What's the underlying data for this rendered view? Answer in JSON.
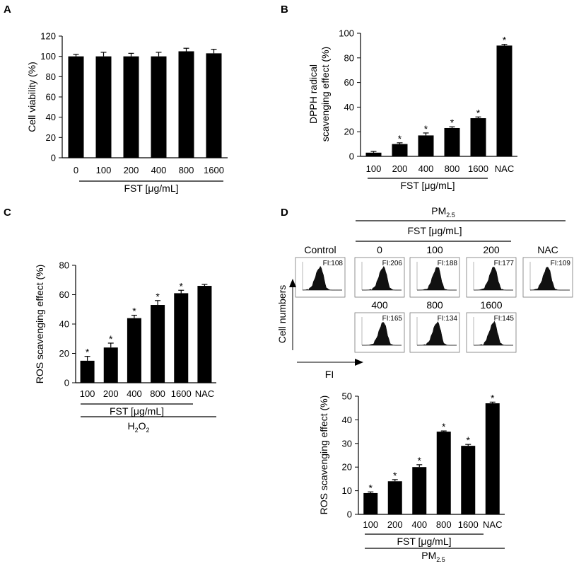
{
  "panels": {
    "A": "A",
    "B": "B",
    "C": "C",
    "D": "D"
  },
  "chart_data": [
    {
      "panel": "A",
      "type": "bar",
      "title": "",
      "ylabel": "Cell viability (%)",
      "xlabel": "",
      "ylim": [
        0,
        120
      ],
      "yticks": [
        0,
        20,
        40,
        60,
        80,
        100,
        120
      ],
      "categories": [
        "0",
        "100",
        "200",
        "400",
        "800",
        "1600"
      ],
      "values": [
        100,
        100,
        100,
        100,
        105,
        103
      ],
      "errors": [
        2,
        4,
        3,
        4,
        3,
        4
      ],
      "significant": [
        false,
        false,
        false,
        false,
        false,
        false
      ],
      "group_labels": [
        "FST [μg/mL]"
      ]
    },
    {
      "panel": "B",
      "type": "bar",
      "title": "",
      "ylabel_lines": [
        "DPPH radical",
        "scavenging effect (%)"
      ],
      "xlabel": "",
      "ylim": [
        0,
        100
      ],
      "yticks": [
        0,
        20,
        40,
        60,
        80,
        100
      ],
      "categories": [
        "100",
        "200",
        "400",
        "800",
        "1600",
        "NAC"
      ],
      "values": [
        3,
        10,
        17,
        23,
        31,
        90
      ],
      "errors": [
        1,
        1,
        2,
        1,
        1,
        1
      ],
      "significant": [
        false,
        true,
        true,
        true,
        true,
        true
      ],
      "group_labels": [
        "FST [μg/mL]"
      ]
    },
    {
      "panel": "C",
      "type": "bar",
      "title": "",
      "ylabel": "ROS scavenging effect (%)",
      "xlabel": "",
      "ylim": [
        0,
        80
      ],
      "yticks": [
        0,
        20,
        40,
        60,
        80
      ],
      "categories": [
        "100",
        "200",
        "400",
        "800",
        "1600",
        "NAC"
      ],
      "values": [
        15,
        24,
        44,
        53,
        61,
        66
      ],
      "errors": [
        3,
        3,
        2,
        3,
        2,
        1
      ],
      "significant": [
        true,
        true,
        true,
        true,
        true,
        false
      ],
      "group_labels": [
        "FST [μg/mL]",
        "H2O2"
      ]
    },
    {
      "panel": "D",
      "type": "bar",
      "title": "",
      "ylabel": "ROS scavenging effect (%)",
      "xlabel": "",
      "ylim": [
        0,
        50
      ],
      "yticks": [
        0,
        10,
        20,
        30,
        40,
        50
      ],
      "categories": [
        "100",
        "200",
        "400",
        "800",
        "1600",
        "NAC"
      ],
      "values": [
        9,
        14,
        20,
        35,
        29,
        47
      ],
      "errors": [
        0.5,
        0.7,
        1,
        0.3,
        0.6,
        0.5
      ],
      "significant": [
        true,
        true,
        true,
        true,
        true,
        true
      ],
      "group_labels": [
        "FST [μg/mL]",
        "PM2.5"
      ]
    }
  ],
  "flow": {
    "pm_label": "PM",
    "pm_sub": "2.5",
    "fst_label": "FST [μg/mL]",
    "ylabel": "Cell numbers",
    "xlabel": "FI",
    "row1": [
      {
        "label": "Control",
        "fi": "FI:108"
      },
      {
        "label": "0",
        "fi": "FI:206"
      },
      {
        "label": "100",
        "fi": "FI:188"
      },
      {
        "label": "200",
        "fi": "FI:177"
      },
      {
        "label": "NAC",
        "fi": "FI:109"
      }
    ],
    "row2": [
      {
        "label": "400",
        "fi": "FI:165"
      },
      {
        "label": "800",
        "fi": "FI:134"
      },
      {
        "label": "1600",
        "fi": "FI:145"
      }
    ]
  },
  "c_group": {
    "h": "H",
    "two": "2",
    "o": "O",
    "two_b": "2"
  },
  "d_group": {
    "pm": "PM",
    "sub": "2.5"
  }
}
